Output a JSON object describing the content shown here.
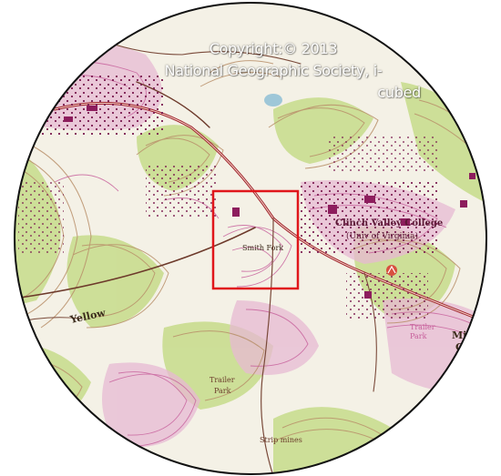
{
  "map": {
    "attribution": {
      "line1": "Copyright:© 2013",
      "line2": "National Geographic Society, i-",
      "line3": "cubed"
    },
    "labels": {
      "college_line1": "Clinch Valley College",
      "college_line2": "(Univ of Virginia)",
      "trailer_park": "Trailer Park",
      "trailer_park_line1": "Trailer",
      "trailer_park_line2": "Park",
      "yellow": "Yellow",
      "strip_mines": "Strip mines",
      "mi_left": "Mi",
      "mi_left2": "Ch",
      "trailer_right": "Trailer",
      "trailer_right2": "Park",
      "smith_fork": "Smith Fork"
    },
    "colors": {
      "paper": "#f4f1e6",
      "green_wood": "#c9dd8f",
      "contour_brown": "#b9906a",
      "contour_pink": "#c65d9a",
      "road_red": "#a0242d",
      "building_purple": "#8d1d5d",
      "selection_red": "#e0161b",
      "lens_border": "#111111"
    }
  }
}
